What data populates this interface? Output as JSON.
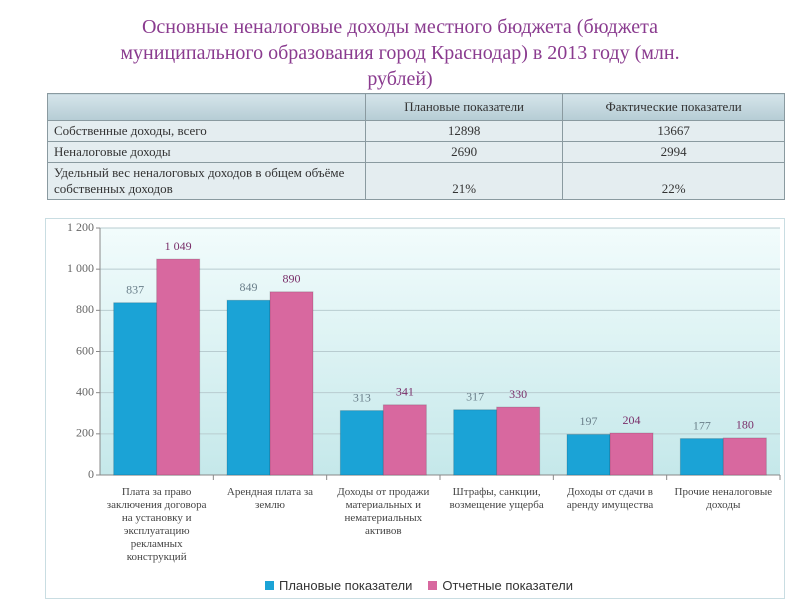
{
  "title": "Основные неналоговые доходы местного бюджета (бюджета муниципального образования город Краснодар) в 2013 году (млн. рублей)",
  "table": {
    "header": [
      "Плановые показатели",
      "Фактические показатели"
    ],
    "rows": [
      [
        "Собственные доходы, всего",
        12898,
        13667
      ],
      [
        "Неналоговые доходы",
        2690,
        2994
      ],
      [
        "Удельный вес неналоговых доходов в общем объёме собственных доходов",
        "21%",
        "22%"
      ]
    ]
  },
  "chart_data": {
    "type": "bar",
    "categories": [
      "Плата за право заключения договора на установку и эксплуатацию рекламных конструкций",
      "Арендная плата за землю",
      "Доходы от продажи материальных и нематериальных активов",
      "Штрафы, санкции, возмещение ущерба",
      "Доходы от сдачи в аренду имущества",
      "Прочие неналоговые доходы"
    ],
    "series": [
      {
        "name": "Плановые показатели",
        "color": "#1ba3d6",
        "values": [
          837,
          849,
          313,
          317,
          197,
          177
        ]
      },
      {
        "name": "Отчетные показатели",
        "color": "#d8689f",
        "values": [
          1049,
          890,
          341,
          330,
          204,
          180
        ],
        "value_labels": [
          "1 049",
          "890",
          "341",
          "330",
          "204",
          "180"
        ]
      }
    ],
    "ylim": [
      0,
      1200
    ],
    "yticks": [
      0,
      200,
      400,
      600,
      800,
      {
        "value": 1000,
        "label": "1 000"
      },
      {
        "value": 1200,
        "label": "1 200"
      }
    ],
    "grid": true,
    "legend": "bottom"
  }
}
